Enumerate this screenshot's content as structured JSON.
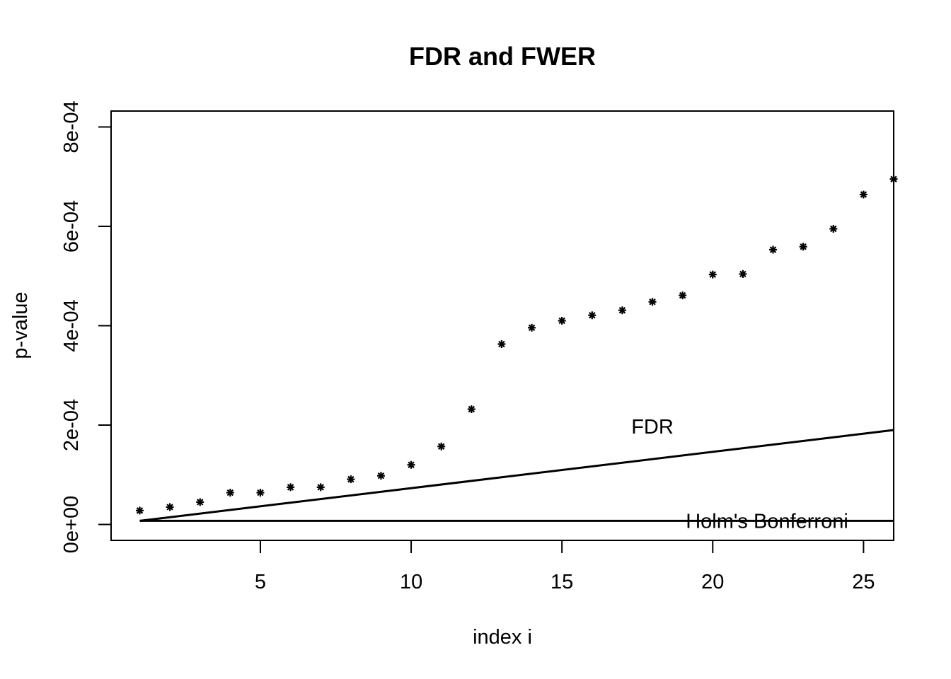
{
  "chart_data": {
    "type": "scatter",
    "title": "FDR and FWER",
    "xlabel": "index i",
    "ylabel": "p-value",
    "xlim": [
      0.05,
      26.0
    ],
    "ylim": [
      -3.2e-05,
      0.000832
    ],
    "x_ticks": [
      5,
      10,
      15,
      20,
      25
    ],
    "x_tick_labels": [
      "5",
      "10",
      "15",
      "20",
      "25"
    ],
    "y_ticks": [
      0,
      0.0002,
      0.0004,
      0.0006,
      0.0008
    ],
    "y_tick_labels": [
      "0e+00",
      "2e-04",
      "4e-04",
      "6e-04",
      "8e-04"
    ],
    "marker": "asterisk",
    "series": [
      {
        "x": [
          1,
          2,
          3,
          4,
          5,
          6,
          7,
          8,
          9,
          10,
          11,
          12,
          13,
          14,
          15,
          16,
          17,
          18,
          19,
          20,
          21,
          22,
          23,
          24,
          25,
          26
        ],
        "values": [
          2.8e-05,
          3.5e-05,
          4.5e-05,
          6.4e-05,
          6.4e-05,
          7.5e-05,
          7.5e-05,
          9.1e-05,
          9.8e-05,
          0.00012,
          0.000157,
          0.000232,
          0.000363,
          0.000396,
          0.00041,
          0.000421,
          0.000431,
          0.000448,
          0.000461,
          0.000503,
          0.000504,
          0.000553,
          0.000559,
          0.000595,
          0.000664,
          0.000695
        ]
      }
    ],
    "lines": [
      {
        "label": "FDR",
        "x": [
          1,
          26
        ],
        "y": [
          7.3e-06,
          0.00019
        ]
      },
      {
        "label": "Holm's Bonferroni",
        "x": [
          1,
          26
        ],
        "y": [
          7.3e-06,
          7.3e-06
        ]
      }
    ],
    "annotations": [
      {
        "text": "FDR",
        "x": 18.0,
        "y": 0.000197
      },
      {
        "text": "Holm's Bonferroni",
        "x": 21.8,
        "y": 7.3e-06
      }
    ],
    "grid": false,
    "legend": "none"
  }
}
